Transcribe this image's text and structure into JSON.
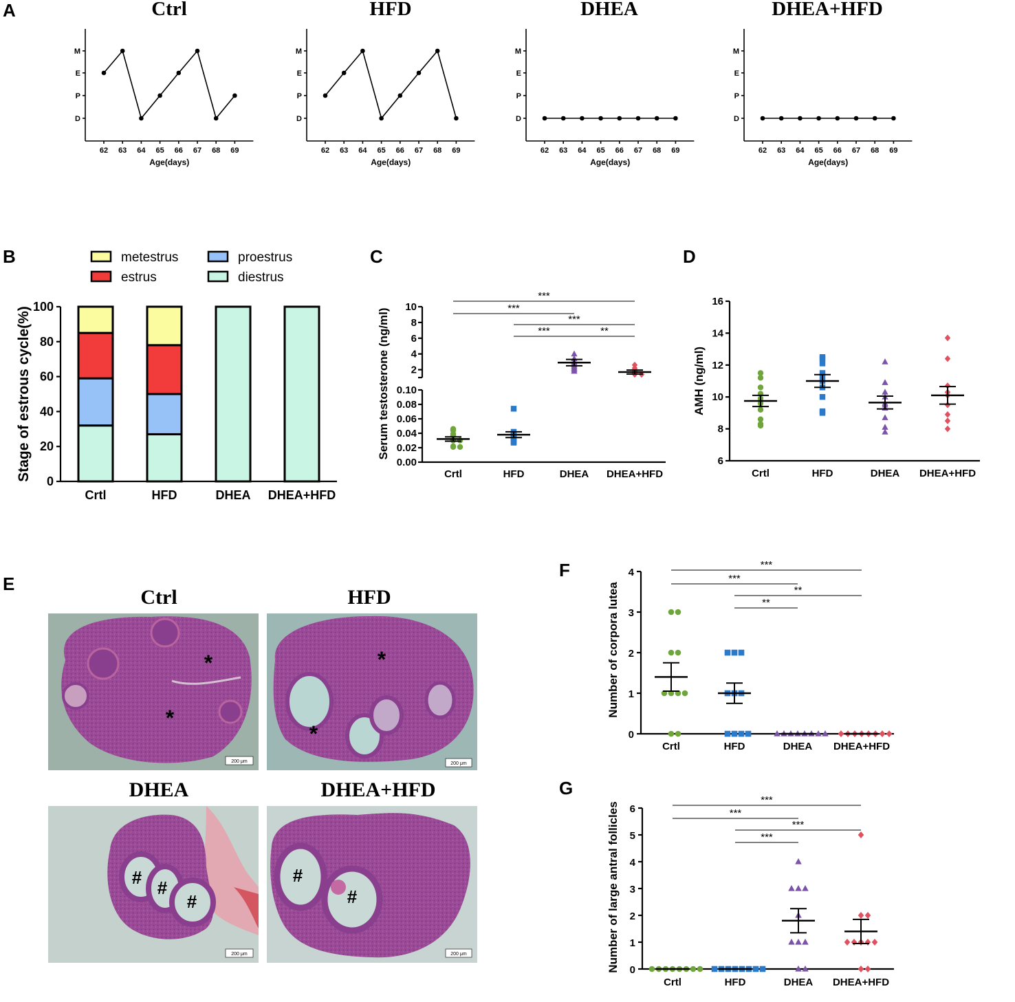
{
  "figure": {
    "panel_letters": [
      "A",
      "B",
      "C",
      "D",
      "E",
      "F",
      "G"
    ]
  },
  "chart_data": [
    {
      "id": "A1",
      "panel": "A",
      "type": "line",
      "title": "Ctrl",
      "xlabel": "Age(days)",
      "x": [
        62,
        63,
        64,
        65,
        66,
        67,
        68,
        69
      ],
      "y_categories": [
        "D",
        "P",
        "E",
        "M"
      ],
      "values": [
        "E",
        "M",
        "D",
        "P",
        "E",
        "M",
        "D",
        "P"
      ]
    },
    {
      "id": "A2",
      "panel": "A",
      "type": "line",
      "title": "HFD",
      "xlabel": "Age(days)",
      "x": [
        62,
        63,
        64,
        65,
        66,
        67,
        68,
        69
      ],
      "y_categories": [
        "D",
        "P",
        "E",
        "M"
      ],
      "values": [
        "P",
        "E",
        "M",
        "D",
        "P",
        "E",
        "M",
        "D"
      ]
    },
    {
      "id": "A3",
      "panel": "A",
      "type": "line",
      "title": "DHEA",
      "xlabel": "Age(days)",
      "x": [
        62,
        63,
        64,
        65,
        66,
        67,
        68,
        69
      ],
      "y_categories": [
        "D",
        "P",
        "E",
        "M"
      ],
      "values": [
        "D",
        "D",
        "D",
        "D",
        "D",
        "D",
        "D",
        "D"
      ]
    },
    {
      "id": "A4",
      "panel": "A",
      "type": "line",
      "title": "DHEA+HFD",
      "xlabel": "Age(days)",
      "x": [
        62,
        63,
        64,
        65,
        66,
        67,
        68,
        69
      ],
      "y_categories": [
        "D",
        "P",
        "E",
        "M"
      ],
      "values": [
        "D",
        "D",
        "D",
        "D",
        "D",
        "D",
        "D",
        "D"
      ]
    },
    {
      "id": "B",
      "panel": "B",
      "type": "bar",
      "stacked": true,
      "ylabel": "Stage of estrous cycle(%)",
      "ylim": [
        0,
        100
      ],
      "yticks": [
        0,
        20,
        40,
        60,
        80,
        100
      ],
      "categories": [
        "Crtl",
        "HFD",
        "DHEA",
        "DHEA+HFD"
      ],
      "legend": [
        "metestrus",
        "proestrus",
        "estrus",
        "diestrus"
      ],
      "series": [
        {
          "name": "diestrus",
          "color": "#c8f5e4",
          "values": [
            32,
            27,
            100,
            100
          ]
        },
        {
          "name": "proestrus",
          "color": "#96c2f7",
          "values": [
            27,
            23,
            0,
            0
          ]
        },
        {
          "name": "estrus",
          "color": "#f23c3c",
          "values": [
            26,
            28,
            0,
            0
          ]
        },
        {
          "name": "metestrus",
          "color": "#fbfba0",
          "values": [
            15,
            22,
            0,
            0
          ]
        }
      ]
    },
    {
      "id": "C",
      "panel": "C",
      "type": "scatter",
      "ylabel": "Serum testosterone (ng/ml)",
      "categories": [
        "Crtl",
        "HFD",
        "DHEA",
        "DHEA+HFD"
      ],
      "broken_axis": {
        "lower_range": [
          0,
          0.1
        ],
        "upper_range": [
          1,
          10
        ]
      },
      "yticks_lower": [
        "0.00",
        "0.02",
        "0.04",
        "0.06",
        "0.08",
        "0.10"
      ],
      "yticks_upper": [
        "2",
        "4",
        "6",
        "8",
        "10"
      ],
      "groups": [
        {
          "name": "Crtl",
          "color": "#6fa53b",
          "marker": "circle",
          "mean": 0.032,
          "sem": 0.003,
          "values": [
            0.046,
            0.045,
            0.044,
            0.039,
            0.037,
            0.03,
            0.03,
            0.022,
            0.021,
            0.021
          ]
        },
        {
          "name": "HFD",
          "color": "#2b7ac9",
          "marker": "square",
          "mean": 0.038,
          "sem": 0.004,
          "values": [
            0.074,
            0.042,
            0.039,
            0.038,
            0.037,
            0.036,
            0.034,
            0.029,
            0.028,
            0.027
          ]
        },
        {
          "name": "DHEA",
          "color": "#7b53a8",
          "marker": "triangle",
          "mean": 2.9,
          "sem": 0.4,
          "values": [
            4.0,
            3.4,
            3.0,
            2.8,
            2.6,
            2.4,
            2.2,
            2.0,
            1.8
          ]
        },
        {
          "name": "DHEA+HFD",
          "color": "#e0505f",
          "marker": "diamond",
          "mean": 1.7,
          "sem": 0.25,
          "values": [
            2.6,
            2.2,
            2.0,
            1.8,
            1.6,
            1.5,
            1.4,
            1.4
          ]
        }
      ],
      "significance": [
        {
          "from": "Crtl",
          "to": "DHEA+HFD",
          "label": "***"
        },
        {
          "from": "Crtl",
          "to": "DHEA",
          "label": "***"
        },
        {
          "from": "HFD",
          "to": "DHEA+HFD",
          "label": "***"
        },
        {
          "from": "HFD",
          "to": "DHEA",
          "label": "***"
        },
        {
          "from": "DHEA",
          "to": "DHEA+HFD",
          "label": "**"
        }
      ]
    },
    {
      "id": "D",
      "panel": "D",
      "type": "scatter",
      "ylabel": "AMH (ng/ml)",
      "ylim": [
        6,
        16
      ],
      "yticks": [
        6,
        8,
        10,
        12,
        14,
        16
      ],
      "categories": [
        "Crtl",
        "HFD",
        "DHEA",
        "DHEA+HFD"
      ],
      "groups": [
        {
          "name": "Crtl",
          "color": "#6fa53b",
          "marker": "circle",
          "mean": 9.75,
          "sem": 0.35,
          "values": [
            11.5,
            11.2,
            10.6,
            10.2,
            9.9,
            9.6,
            9.2,
            8.6,
            8.3,
            8.2
          ]
        },
        {
          "name": "HFD",
          "color": "#2b7ac9",
          "marker": "square",
          "mean": 11.0,
          "sem": 0.4,
          "values": [
            12.5,
            12.4,
            12.1,
            11.5,
            11.0,
            11.3,
            10.6,
            10.0,
            9.1,
            9.0
          ]
        },
        {
          "name": "DHEA",
          "color": "#7b53a8",
          "marker": "triangle",
          "mean": 9.65,
          "sem": 0.4,
          "values": [
            12.2,
            10.9,
            10.3,
            10.0,
            9.6,
            9.5,
            9.3,
            8.7,
            8.1,
            7.8
          ]
        },
        {
          "name": "DHEA+HFD",
          "color": "#e0505f",
          "marker": "diamond",
          "mean": 10.1,
          "sem": 0.55,
          "values": [
            13.7,
            12.4,
            10.7,
            10.3,
            10.1,
            9.5,
            8.9,
            8.5,
            8.0
          ]
        }
      ]
    },
    {
      "id": "F",
      "panel": "F",
      "type": "scatter",
      "ylabel": "Number of corpora lutea",
      "ylim": [
        0,
        4
      ],
      "yticks": [
        0,
        1,
        2,
        3,
        4
      ],
      "categories": [
        "Crtl",
        "HFD",
        "DHEA",
        "DHEA+HFD"
      ],
      "groups": [
        {
          "name": "Crtl",
          "color": "#6fa53b",
          "marker": "circle",
          "mean": 1.4,
          "sem": 0.35,
          "values": [
            3,
            3,
            2,
            2,
            1,
            1,
            1,
            1,
            0,
            0
          ]
        },
        {
          "name": "HFD",
          "color": "#2b7ac9",
          "marker": "square",
          "mean": 1.0,
          "sem": 0.25,
          "values": [
            2,
            2,
            2,
            1,
            1,
            1,
            0,
            0,
            0,
            0
          ]
        },
        {
          "name": "DHEA",
          "color": "#7b53a8",
          "marker": "triangle",
          "mean": 0,
          "sem": 0,
          "values": [
            0,
            0,
            0,
            0,
            0,
            0,
            0,
            0
          ]
        },
        {
          "name": "DHEA+HFD",
          "color": "#e0505f",
          "marker": "diamond",
          "mean": 0,
          "sem": 0,
          "values": [
            0,
            0,
            0,
            0,
            0,
            0,
            0,
            0
          ]
        }
      ],
      "significance": [
        {
          "from": "Crtl",
          "to": "DHEA+HFD",
          "label": "***"
        },
        {
          "from": "Crtl",
          "to": "DHEA",
          "label": "***"
        },
        {
          "from": "HFD",
          "to": "DHEA+HFD",
          "label": "**"
        },
        {
          "from": "HFD",
          "to": "DHEA",
          "label": "**"
        }
      ]
    },
    {
      "id": "G",
      "panel": "G",
      "type": "scatter",
      "ylabel": "Number of large antral follicles",
      "ylim": [
        0,
        6
      ],
      "yticks": [
        0,
        1,
        2,
        3,
        4,
        5,
        6
      ],
      "categories": [
        "Crtl",
        "HFD",
        "DHEA",
        "DHEA+HFD"
      ],
      "groups": [
        {
          "name": "Crtl",
          "color": "#6fa53b",
          "marker": "circle",
          "mean": 0,
          "sem": 0,
          "values": [
            0,
            0,
            0,
            0,
            0,
            0,
            0,
            0
          ]
        },
        {
          "name": "HFD",
          "color": "#2b7ac9",
          "marker": "square",
          "mean": 0,
          "sem": 0,
          "values": [
            0,
            0,
            0,
            0,
            0,
            0,
            0,
            0
          ]
        },
        {
          "name": "DHEA",
          "color": "#7b53a8",
          "marker": "triangle",
          "mean": 1.8,
          "sem": 0.45,
          "values": [
            4,
            3,
            3,
            3,
            2,
            1,
            1,
            1,
            0,
            0
          ]
        },
        {
          "name": "DHEA+HFD",
          "color": "#e0505f",
          "marker": "diamond",
          "mean": 1.4,
          "sem": 0.45,
          "values": [
            5,
            2,
            2,
            1,
            1,
            1,
            1,
            1,
            0,
            0
          ]
        }
      ],
      "significance": [
        {
          "from": "Crtl",
          "to": "DHEA+HFD",
          "label": "***"
        },
        {
          "from": "Crtl",
          "to": "DHEA",
          "label": "***"
        },
        {
          "from": "HFD",
          "to": "DHEA+HFD",
          "label": "***"
        },
        {
          "from": "HFD",
          "to": "DHEA",
          "label": "***"
        }
      ]
    }
  ],
  "histology": {
    "panel": "E",
    "images": [
      {
        "title": "Ctrl",
        "scale_bar": "200 μm",
        "marks": [
          "*",
          "*"
        ]
      },
      {
        "title": "HFD",
        "scale_bar": "200 μm",
        "marks": [
          "*",
          "*"
        ]
      },
      {
        "title": "DHEA",
        "scale_bar": "200 μm",
        "marks": [
          "#",
          "#",
          "#"
        ]
      },
      {
        "title": "DHEA+HFD",
        "scale_bar": "200 μm",
        "marks": [
          "#",
          "#"
        ]
      }
    ]
  }
}
